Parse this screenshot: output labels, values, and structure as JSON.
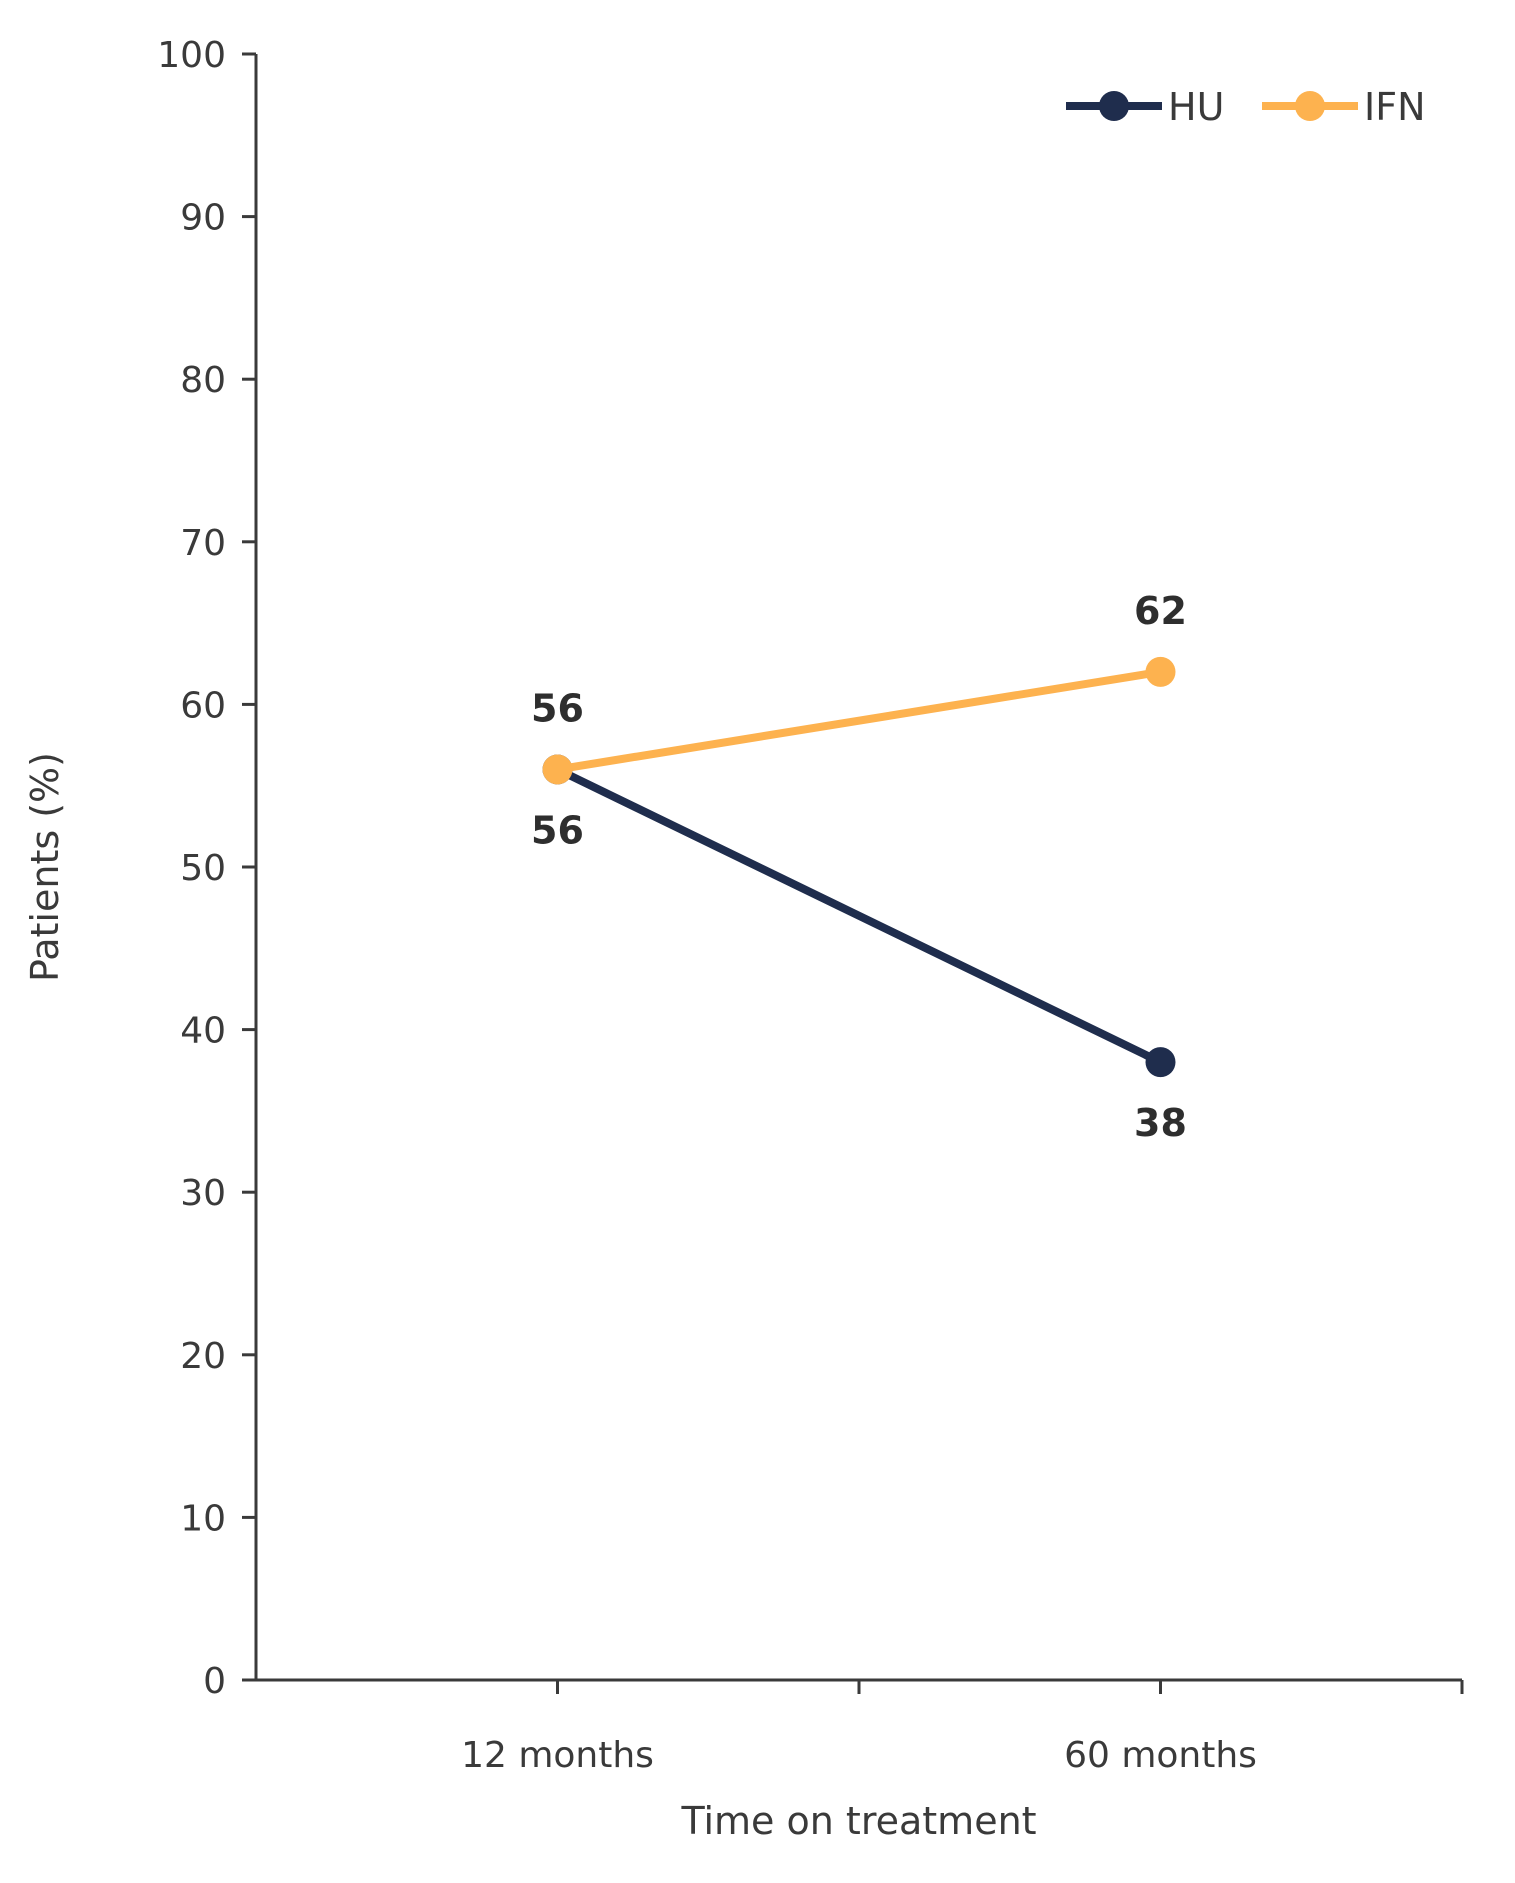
{
  "chart_data": {
    "type": "line",
    "categories": [
      "12 months",
      "60 months"
    ],
    "series": [
      {
        "name": "HU",
        "values": [
          56,
          38
        ],
        "color": "#1f2d4d"
      },
      {
        "name": "IFN",
        "values": [
          56,
          62
        ],
        "color": "#fdb24f"
      }
    ],
    "xlabel": "Time on treatment",
    "ylabel": "Patients (%)",
    "ylim": [
      0,
      100
    ],
    "yticks": [
      0,
      10,
      20,
      30,
      40,
      50,
      60,
      70,
      80,
      90,
      100
    ],
    "legend_position": "top-right",
    "grid": false,
    "axis_color": "#3a3a3a"
  }
}
